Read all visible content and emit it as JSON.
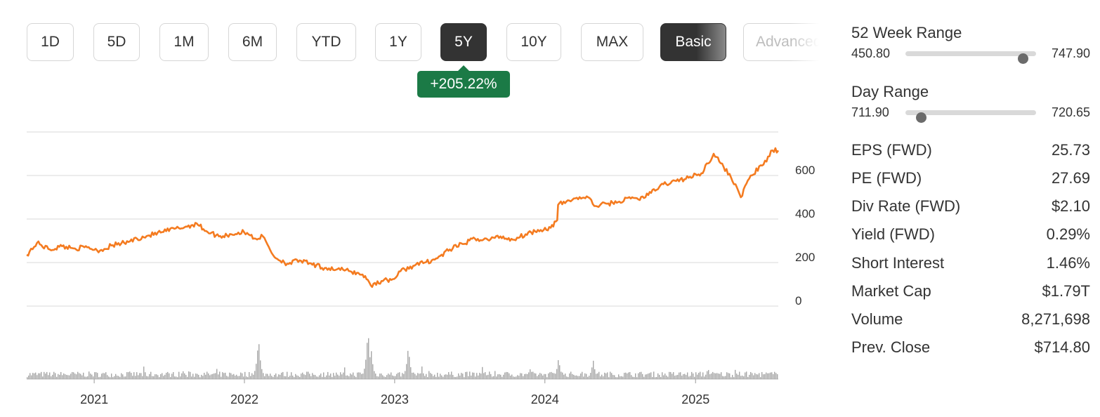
{
  "range_buttons": [
    {
      "label": "1D",
      "active": false
    },
    {
      "label": "5D",
      "active": false
    },
    {
      "label": "1M",
      "active": false
    },
    {
      "label": "6M",
      "active": false
    },
    {
      "label": "YTD",
      "active": false
    },
    {
      "label": "1Y",
      "active": false
    },
    {
      "label": "5Y",
      "active": true
    },
    {
      "label": "10Y",
      "active": false
    },
    {
      "label": "MAX",
      "active": false
    }
  ],
  "mode_buttons": {
    "basic": "Basic",
    "advanced": "Advanced"
  },
  "change_badge": "+205.22%",
  "colors": {
    "line": "#f47b20",
    "volume": "#a6a6a6",
    "badge": "#1b7a46",
    "active_button": "#333333"
  },
  "chart_data": {
    "type": "line",
    "price_axis": {
      "ticks": [
        0,
        200,
        400,
        600
      ],
      "ylim": [
        0,
        800
      ]
    },
    "x_ticks": [
      "2021",
      "2022",
      "2023",
      "2024",
      "2025"
    ],
    "x_range": [
      "2020-07-21",
      "2025-07-21"
    ],
    "price_series": {
      "dates": [
        "2020-07-21",
        "2020-08-15",
        "2020-09-15",
        "2020-10-15",
        "2020-11-15",
        "2020-12-15",
        "2021-01-15",
        "2021-02-15",
        "2021-03-15",
        "2021-04-15",
        "2021-05-15",
        "2021-06-15",
        "2021-07-15",
        "2021-08-15",
        "2021-09-07",
        "2021-09-30",
        "2021-10-31",
        "2021-11-30",
        "2021-12-31",
        "2022-01-15",
        "2022-01-28",
        "2022-02-15",
        "2022-03-15",
        "2022-04-15",
        "2022-05-15",
        "2022-06-15",
        "2022-07-15",
        "2022-08-15",
        "2022-09-15",
        "2022-10-15",
        "2022-10-31",
        "2022-11-04",
        "2022-11-30",
        "2022-12-31",
        "2023-01-15",
        "2023-02-15",
        "2023-03-15",
        "2023-04-15",
        "2023-05-15",
        "2023-06-15",
        "2023-07-15",
        "2023-08-15",
        "2023-09-15",
        "2023-10-15",
        "2023-11-15",
        "2023-12-15",
        "2024-01-15",
        "2024-01-31",
        "2024-02-02",
        "2024-02-29",
        "2024-03-15",
        "2024-04-15",
        "2024-04-30",
        "2024-05-31",
        "2024-06-30",
        "2024-07-31",
        "2024-08-15",
        "2024-09-15",
        "2024-10-15",
        "2024-11-15",
        "2024-12-15",
        "2025-01-15",
        "2025-02-14",
        "2025-03-10",
        "2025-04-08",
        "2025-04-21",
        "2025-05-15",
        "2025-06-15",
        "2025-07-07",
        "2025-07-21"
      ],
      "values": [
        235,
        290,
        260,
        275,
        265,
        270,
        255,
        280,
        290,
        310,
        325,
        340,
        355,
        365,
        380,
        345,
        320,
        330,
        340,
        325,
        310,
        320,
        225,
        195,
        210,
        190,
        175,
        170,
        160,
        145,
        110,
        95,
        115,
        125,
        160,
        185,
        200,
        220,
        260,
        285,
        310,
        305,
        320,
        305,
        330,
        350,
        360,
        395,
        465,
        485,
        495,
        500,
        460,
        470,
        480,
        500,
        490,
        520,
        560,
        575,
        590,
        610,
        700,
        640,
        560,
        500,
        600,
        650,
        715,
        714.8
      ]
    },
    "volume_series": {
      "unit": "relative",
      "spikes": [
        {
          "date": "2022-02-03",
          "value": 0.82
        },
        {
          "date": "2022-10-27",
          "value": 1.0
        },
        {
          "date": "2022-11-04",
          "value": 0.55
        },
        {
          "date": "2023-02-02",
          "value": 0.65
        },
        {
          "date": "2024-02-02",
          "value": 0.42
        },
        {
          "date": "2024-04-26",
          "value": 0.38
        },
        {
          "date": "2025-01-30",
          "value": 0.22
        }
      ],
      "baseline": 0.12
    }
  },
  "stats_panel": {
    "week52": {
      "title": "52 Week Range",
      "low": "450.80",
      "high": "747.90",
      "position": 0.9
    },
    "day": {
      "title": "Day Range",
      "low": "711.90",
      "high": "720.65",
      "position": 0.12
    },
    "rows": [
      {
        "label": "EPS (FWD)",
        "value": "25.73"
      },
      {
        "label": "PE (FWD)",
        "value": "27.69"
      },
      {
        "label": "Div Rate (FWD)",
        "value": "$2.10"
      },
      {
        "label": "Yield (FWD)",
        "value": "0.29%"
      },
      {
        "label": "Short Interest",
        "value": "1.46%"
      },
      {
        "label": "Market Cap",
        "value": "$1.79T"
      },
      {
        "label": "Volume",
        "value": "8,271,698"
      },
      {
        "label": "Prev. Close",
        "value": "$714.80"
      }
    ]
  }
}
